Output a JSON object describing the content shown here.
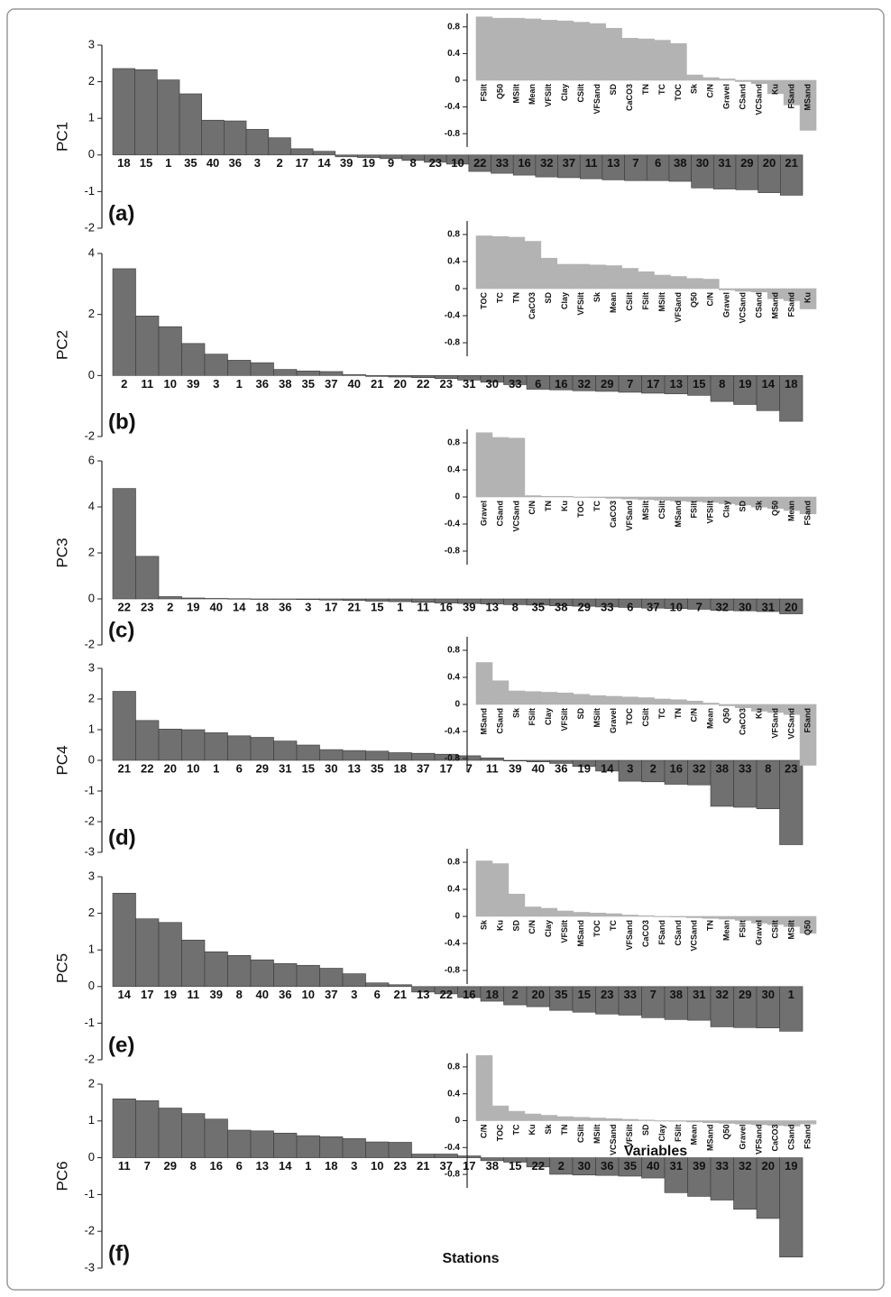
{
  "chart_data": [
    {
      "type": "bar",
      "panel_label": "(a)",
      "y_label": "PC1",
      "categories": [
        "18",
        "15",
        "1",
        "35",
        "40",
        "36",
        "3",
        "2",
        "17",
        "14",
        "39",
        "19",
        "9",
        "8",
        "23",
        "10",
        "22",
        "33",
        "16",
        "32",
        "37",
        "11",
        "13",
        "7",
        "6",
        "38",
        "30",
        "31",
        "29",
        "20",
        "21"
      ],
      "values": [
        2.36,
        2.33,
        2.05,
        1.67,
        0.95,
        0.93,
        0.7,
        0.47,
        0.17,
        0.1,
        -0.05,
        -0.07,
        -0.1,
        -0.15,
        -0.2,
        -0.25,
        -0.45,
        -0.5,
        -0.55,
        -0.6,
        -0.62,
        -0.65,
        -0.68,
        -0.7,
        -0.7,
        -0.72,
        -0.9,
        -0.93,
        -0.95,
        -1.03,
        -1.1
      ],
      "color": "#707070",
      "ylim": [
        -2,
        3
      ],
      "yticks": [
        -2,
        -1,
        0,
        1,
        2,
        3
      ]
    },
    {
      "type": "bar",
      "categories": [
        "FSilt",
        "Q50",
        "MSilt",
        "Mean",
        "VFSilt",
        "Clay",
        "CSilt",
        "VFSand",
        "SD",
        "CaCO3",
        "TN",
        "TC",
        "TOC",
        "Sk",
        "C/N",
        "Gravel",
        "CSand",
        "VCSand",
        "Ku",
        "FSand",
        "MSand"
      ],
      "values": [
        0.95,
        0.93,
        0.93,
        0.92,
        0.9,
        0.89,
        0.87,
        0.85,
        0.78,
        0.63,
        0.62,
        0.6,
        0.55,
        0.08,
        0.04,
        0.02,
        -0.02,
        -0.05,
        -0.2,
        -0.37,
        -0.75
      ],
      "color": "#b3b3b3",
      "ylim": [
        -1,
        1
      ],
      "yticks": [
        -0.8,
        -0.4,
        0,
        0.4,
        0.8
      ]
    },
    {
      "type": "bar",
      "panel_label": "(b)",
      "y_label": "PC2",
      "categories": [
        "2",
        "11",
        "10",
        "39",
        "3",
        "1",
        "36",
        "38",
        "35",
        "37",
        "40",
        "21",
        "20",
        "22",
        "23",
        "31",
        "30",
        "33",
        "6",
        "16",
        "32",
        "29",
        "7",
        "17",
        "13",
        "15",
        "8",
        "19",
        "14",
        "18"
      ],
      "values": [
        3.5,
        1.95,
        1.6,
        1.05,
        0.7,
        0.5,
        0.42,
        0.2,
        0.15,
        0.13,
        0.03,
        -0.03,
        -0.05,
        -0.07,
        -0.1,
        -0.15,
        -0.22,
        -0.3,
        -0.45,
        -0.47,
        -0.5,
        -0.52,
        -0.55,
        -0.58,
        -0.6,
        -0.65,
        -0.85,
        -0.95,
        -1.15,
        -1.5
      ],
      "color": "#707070",
      "ylim": [
        -2,
        4
      ],
      "yticks": [
        -2,
        0,
        2,
        4
      ]
    },
    {
      "type": "bar",
      "categories": [
        "TOC",
        "TC",
        "TN",
        "CaCO3",
        "SD",
        "Clay",
        "VFSilt",
        "Sk",
        "Mean",
        "CSilt",
        "FSilt",
        "MSilt",
        "VFSand",
        "Q50",
        "C/N",
        "Gravel",
        "VCSand",
        "CSand",
        "MSand",
        "FSand",
        "Ku"
      ],
      "values": [
        0.78,
        0.77,
        0.76,
        0.7,
        0.45,
        0.36,
        0.36,
        0.35,
        0.34,
        0.3,
        0.25,
        0.2,
        0.18,
        0.15,
        0.14,
        -0.02,
        -0.04,
        -0.05,
        -0.15,
        -0.18,
        -0.3
      ],
      "color": "#b3b3b3",
      "ylim": [
        -1,
        1
      ],
      "yticks": [
        -0.8,
        -0.4,
        0,
        0.4,
        0.8
      ]
    },
    {
      "type": "bar",
      "panel_label": "(c)",
      "y_label": "PC3",
      "categories": [
        "22",
        "23",
        "2",
        "19",
        "40",
        "14",
        "18",
        "36",
        "3",
        "17",
        "21",
        "15",
        "1",
        "11",
        "16",
        "39",
        "13",
        "8",
        "35",
        "38",
        "29",
        "33",
        "6",
        "37",
        "10",
        "7",
        "32",
        "30",
        "31",
        "20"
      ],
      "values": [
        4.8,
        1.85,
        0.1,
        0.04,
        0.02,
        0.01,
        0,
        -0.02,
        -0.03,
        -0.05,
        -0.07,
        -0.1,
        -0.12,
        -0.15,
        -0.18,
        -0.2,
        -0.22,
        -0.25,
        -0.27,
        -0.3,
        -0.32,
        -0.35,
        -0.37,
        -0.4,
        -0.42,
        -0.45,
        -0.5,
        -0.52,
        -0.55,
        -0.65
      ],
      "color": "#707070",
      "ylim": [
        -2,
        6
      ],
      "yticks": [
        -2,
        0,
        2,
        4,
        6
      ]
    },
    {
      "type": "bar",
      "categories": [
        "Gravel",
        "CSand",
        "VCSand",
        "C/N",
        "TN",
        "Ku",
        "TOC",
        "TC",
        "CaCO3",
        "VFSand",
        "MSilt",
        "CSilt",
        "MSand",
        "FSilt",
        "VFSilt",
        "Clay",
        "SD",
        "Sk",
        "Q50",
        "Mean",
        "FSand"
      ],
      "values": [
        0.95,
        0.88,
        0.87,
        0.02,
        0.01,
        0.01,
        0,
        -0.01,
        -0.02,
        -0.03,
        -0.04,
        -0.05,
        -0.06,
        -0.07,
        -0.08,
        -0.1,
        -0.12,
        -0.15,
        -0.17,
        -0.2,
        -0.25
      ],
      "color": "#b3b3b3",
      "ylim": [
        -1,
        1
      ],
      "yticks": [
        -0.8,
        -0.4,
        0,
        0.4,
        0.8
      ]
    },
    {
      "type": "bar",
      "panel_label": "(d)",
      "y_label": "PC4",
      "categories": [
        "21",
        "22",
        "20",
        "10",
        "1",
        "6",
        "29",
        "31",
        "15",
        "30",
        "13",
        "35",
        "18",
        "37",
        "17",
        "7",
        "11",
        "39",
        "40",
        "36",
        "19",
        "14",
        "3",
        "2",
        "16",
        "32",
        "38",
        "33",
        "8",
        "23"
      ],
      "values": [
        2.25,
        1.3,
        1.02,
        1.0,
        0.9,
        0.8,
        0.75,
        0.63,
        0.5,
        0.35,
        0.32,
        0.3,
        0.25,
        0.23,
        0.2,
        0.15,
        0.08,
        -0.02,
        -0.05,
        -0.1,
        -0.2,
        -0.35,
        -0.68,
        -0.7,
        -0.78,
        -0.8,
        -1.5,
        -1.53,
        -1.58,
        -2.75
      ],
      "color": "#707070",
      "ylim": [
        -3,
        3
      ],
      "yticks": [
        -3,
        -2,
        -1,
        0,
        1,
        2,
        3
      ]
    },
    {
      "type": "bar",
      "categories": [
        "MSand",
        "CSand",
        "Sk",
        "FSilt",
        "Clay",
        "VFSilt",
        "SD",
        "MSilt",
        "Gravel",
        "TOC",
        "CSilt",
        "TC",
        "TN",
        "C/N",
        "Mean",
        "Q50",
        "CaCO3",
        "Ku",
        "VFSand",
        "VCSand",
        "FSand"
      ],
      "values": [
        0.62,
        0.35,
        0.2,
        0.19,
        0.18,
        0.17,
        0.15,
        0.13,
        0.12,
        0.11,
        0.1,
        0.08,
        0.07,
        0.05,
        0.02,
        -0.02,
        -0.05,
        -0.1,
        -0.12,
        -0.15,
        -0.9
      ],
      "color": "#b3b3b3",
      "ylim": [
        -1,
        1
      ],
      "yticks": [
        -0.8,
        -0.4,
        0,
        0.4,
        0.8
      ]
    },
    {
      "type": "bar",
      "panel_label": "(e)",
      "y_label": "PC5",
      "categories": [
        "14",
        "17",
        "19",
        "11",
        "39",
        "8",
        "40",
        "36",
        "10",
        "37",
        "3",
        "6",
        "21",
        "13",
        "22",
        "16",
        "18",
        "2",
        "20",
        "35",
        "15",
        "23",
        "33",
        "7",
        "38",
        "31",
        "32",
        "29",
        "30",
        "1"
      ],
      "values": [
        2.55,
        1.85,
        1.75,
        1.27,
        0.95,
        0.85,
        0.73,
        0.63,
        0.58,
        0.5,
        0.35,
        0.1,
        0.05,
        -0.15,
        -0.2,
        -0.3,
        -0.4,
        -0.5,
        -0.55,
        -0.65,
        -0.7,
        -0.75,
        -0.78,
        -0.85,
        -0.9,
        -0.92,
        -1.1,
        -1.12,
        -1.13,
        -1.22
      ],
      "color": "#707070",
      "ylim": [
        -2,
        3
      ],
      "yticks": [
        -2,
        -1,
        0,
        1,
        2,
        3
      ]
    },
    {
      "type": "bar",
      "categories": [
        "Sk",
        "Ku",
        "SD",
        "C/N",
        "Clay",
        "VFSilt",
        "MSand",
        "TOC",
        "TC",
        "VFSand",
        "CaCO3",
        "FSand",
        "CSand",
        "VCSand",
        "TN",
        "Mean",
        "FSilt",
        "Gravel",
        "CSilt",
        "MSilt",
        "Q50"
      ],
      "values": [
        0.82,
        0.78,
        0.33,
        0.14,
        0.12,
        0.08,
        0.06,
        0.05,
        0.04,
        0.02,
        0.01,
        0,
        -0.01,
        -0.02,
        -0.03,
        -0.04,
        -0.06,
        -0.1,
        -0.12,
        -0.15,
        -0.25
      ],
      "color": "#b3b3b3",
      "ylim": [
        -1,
        1
      ],
      "yticks": [
        -0.8,
        -0.4,
        0,
        0.4,
        0.8
      ]
    },
    {
      "type": "bar",
      "panel_label": "(f)",
      "y_label": "PC6",
      "x_label": "Stations",
      "categories": [
        "11",
        "7",
        "29",
        "8",
        "16",
        "6",
        "13",
        "14",
        "1",
        "18",
        "3",
        "10",
        "23",
        "21",
        "37",
        "17",
        "38",
        "15",
        "22",
        "2",
        "30",
        "36",
        "35",
        "40",
        "31",
        "39",
        "33",
        "32",
        "20",
        "19"
      ],
      "values": [
        1.6,
        1.55,
        1.35,
        1.2,
        1.05,
        0.75,
        0.73,
        0.67,
        0.6,
        0.57,
        0.52,
        0.43,
        0.42,
        0.1,
        0.1,
        0.05,
        -0.08,
        -0.12,
        -0.25,
        -0.45,
        -0.47,
        -0.48,
        -0.5,
        -0.55,
        -0.95,
        -1.05,
        -1.15,
        -1.4,
        -1.65,
        -2.7
      ],
      "color": "#707070",
      "ylim": [
        -3,
        2
      ],
      "yticks": [
        -3,
        -2,
        -1,
        0,
        1,
        2
      ]
    },
    {
      "type": "bar",
      "x_label": "Variables",
      "categories": [
        "C/N",
        "TOC",
        "TC",
        "Ku",
        "Sk",
        "TN",
        "CSilt",
        "MSilt",
        "VCSand",
        "VFSilt",
        "SD",
        "Clay",
        "FSilt",
        "Mean",
        "MSand",
        "Q50",
        "Gravel",
        "VFSand",
        "CaCO3",
        "CSand",
        "FSand"
      ],
      "values": [
        0.97,
        0.22,
        0.14,
        0.1,
        0.08,
        0.06,
        0.05,
        0.04,
        0.03,
        0.02,
        0.01,
        0,
        -0.01,
        -0.02,
        -0.03,
        -0.04,
        -0.05,
        -0.06,
        -0.07,
        -0.08,
        -0.05
      ],
      "color": "#b3b3b3",
      "ylim": [
        -1,
        1
      ],
      "yticks": [
        -0.8,
        -0.4,
        0,
        0.4,
        0.8
      ]
    }
  ]
}
